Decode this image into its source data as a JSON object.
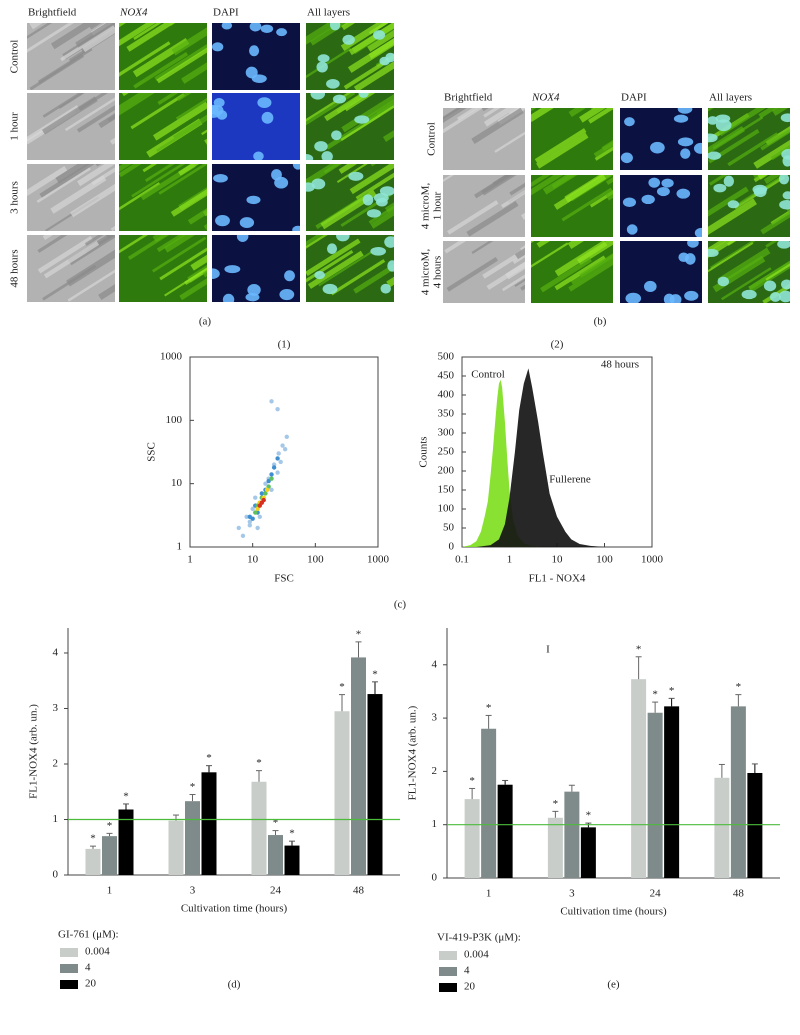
{
  "panels": {
    "a": {
      "label": "(a)",
      "columns": [
        "Brightfield",
        "NOX4",
        "DAPI",
        "All layers"
      ],
      "rows": [
        "Control",
        "1 hour",
        "3 hours",
        "48 hours"
      ]
    },
    "b": {
      "label": "(b)",
      "columns": [
        "Brightfield",
        "NOX4",
        "DAPI",
        "All layers"
      ],
      "rows": [
        [
          "Control"
        ],
        [
          "4 microM,",
          "1 hour"
        ],
        [
          "4 microM,",
          "4 hours"
        ]
      ]
    },
    "c": {
      "label": "(c)"
    }
  },
  "chart_data": [
    {
      "type": "scatter",
      "title": "(1)",
      "xlabel": "FSC",
      "ylabel": "SSC",
      "xlog": true,
      "ylog": true,
      "xlim": [
        1,
        1000
      ],
      "ylim": [
        1,
        1000
      ],
      "xticks": [
        1,
        10,
        100,
        1000
      ],
      "yticks": [
        1,
        10,
        100,
        1000
      ],
      "series": [
        {
          "color": "#a6c8e8",
          "x": [
            6,
            7,
            8,
            9,
            10,
            12,
            14,
            18,
            22,
            26,
            30,
            35,
            25,
            20,
            16,
            11,
            9,
            13,
            28,
            33,
            20,
            25
          ],
          "y": [
            2,
            1.5,
            3,
            2.2,
            4,
            2,
            6,
            12,
            20,
            30,
            40,
            55,
            15,
            8,
            10,
            6,
            2.5,
            3,
            22,
            35,
            200,
            150
          ]
        },
        {
          "color": "#3f8fd0",
          "x": [
            9,
            10,
            11,
            12,
            14,
            16,
            18,
            20,
            22,
            25
          ],
          "y": [
            3,
            2.8,
            4.5,
            3.5,
            7,
            8,
            11,
            14,
            18,
            25
          ]
        },
        {
          "color": "#5fc060",
          "x": [
            11,
            12,
            13,
            14,
            16,
            18,
            20
          ],
          "y": [
            3.5,
            4.5,
            5,
            6,
            7,
            9,
            12
          ]
        },
        {
          "color": "#f0d020",
          "x": [
            12,
            13,
            15,
            17
          ],
          "y": [
            4,
            5,
            6,
            8
          ]
        },
        {
          "color": "#d83020",
          "x": [
            13,
            14,
            15
          ],
          "y": [
            4.5,
            5,
            5.5
          ]
        }
      ]
    },
    {
      "type": "histogram-area",
      "title": "(2)",
      "xlabel": "FL1 - NOX4",
      "ylabel": "Counts",
      "xlog": true,
      "xlim": [
        0.1,
        1000
      ],
      "ylim": [
        0,
        500
      ],
      "xticks": [
        0.1,
        1,
        10,
        100,
        1000
      ],
      "yticks": [
        0,
        50,
        100,
        150,
        200,
        250,
        300,
        350,
        400,
        450,
        500
      ],
      "annotations": [
        "Control",
        "Fullerene",
        "48 hours"
      ],
      "series": [
        {
          "color": "#7fe020",
          "x": [
            0.1,
            0.15,
            0.2,
            0.25,
            0.3,
            0.35,
            0.4,
            0.45,
            0.5,
            0.55,
            0.6,
            0.65,
            0.7,
            0.8,
            0.9,
            1.0,
            1.2,
            1.5,
            2,
            3,
            5
          ],
          "values": [
            0,
            5,
            15,
            40,
            80,
            120,
            190,
            260,
            330,
            390,
            430,
            440,
            420,
            330,
            230,
            150,
            70,
            30,
            10,
            3,
            0
          ]
        },
        {
          "color": "#151515",
          "x": [
            0.2,
            0.4,
            0.6,
            0.8,
            1,
            1.3,
            1.6,
            2,
            2.5,
            3,
            4,
            5,
            7,
            10,
            15,
            20,
            30,
            50,
            100
          ],
          "values": [
            0,
            5,
            20,
            60,
            130,
            250,
            360,
            430,
            470,
            420,
            330,
            250,
            140,
            80,
            40,
            20,
            8,
            3,
            0
          ]
        }
      ]
    },
    {
      "type": "bar",
      "panel_label": "(d)",
      "xlabel": "Cultivation time (hours)",
      "ylabel": "FL1-NOX4 (arb. un.)",
      "categories": [
        "1",
        "3",
        "24",
        "48"
      ],
      "ylim": [
        0,
        4.45
      ],
      "yticks": [
        0,
        1,
        2,
        3,
        4
      ],
      "hline": 1,
      "hline_color": "#4cbb3c",
      "legend_title": "GI-761 (μM):",
      "series": [
        {
          "name": "0.004",
          "color": "#c8cdc9",
          "values": [
            0.47,
            0.98,
            1.68,
            2.95
          ],
          "errors": [
            0.05,
            0.1,
            0.2,
            0.3
          ],
          "markers": [
            "*",
            null,
            "*",
            "*"
          ]
        },
        {
          "name": "4",
          "color": "#7f8a8a",
          "values": [
            0.7,
            1.33,
            0.72,
            3.92
          ],
          "errors": [
            0.05,
            0.12,
            0.08,
            0.28
          ],
          "markers": [
            "*",
            "*",
            "*",
            "*"
          ]
        },
        {
          "name": "20",
          "color": "#000000",
          "values": [
            1.18,
            1.85,
            0.53,
            3.26
          ],
          "errors": [
            0.1,
            0.12,
            0.08,
            0.22
          ],
          "markers": [
            "*",
            "*",
            "*",
            "*"
          ]
        }
      ]
    },
    {
      "type": "bar",
      "panel_label": "(e)",
      "xlabel": "Cultivation time (hours)",
      "ylabel": "FL1-NOX4 (arb. un.)",
      "categories": [
        "1",
        "3",
        "24",
        "48"
      ],
      "ylim": [
        0,
        4.69
      ],
      "yticks": [
        0,
        1,
        2,
        3,
        4
      ],
      "hline": 1,
      "hline_color": "#4cbb3c",
      "legend_title": "VI-419-P3K (μM):",
      "annotations": [
        "I"
      ],
      "series": [
        {
          "name": "0.004",
          "color": "#c8cdc9",
          "values": [
            1.48,
            1.13,
            3.73,
            1.88
          ],
          "errors": [
            0.2,
            0.12,
            0.42,
            0.25
          ],
          "markers": [
            "*",
            "*",
            "*",
            null
          ]
        },
        {
          "name": "4",
          "color": "#7f8a8a",
          "values": [
            2.8,
            1.62,
            3.1,
            3.22
          ],
          "errors": [
            0.25,
            0.12,
            0.2,
            0.22
          ],
          "markers": [
            "*",
            null,
            "*",
            "*"
          ]
        },
        {
          "name": "20",
          "color": "#000000",
          "values": [
            1.75,
            0.95,
            3.22,
            1.97
          ],
          "errors": [
            0.08,
            0.08,
            0.15,
            0.17
          ],
          "markers": [
            null,
            "*",
            "*",
            null
          ]
        }
      ]
    }
  ]
}
